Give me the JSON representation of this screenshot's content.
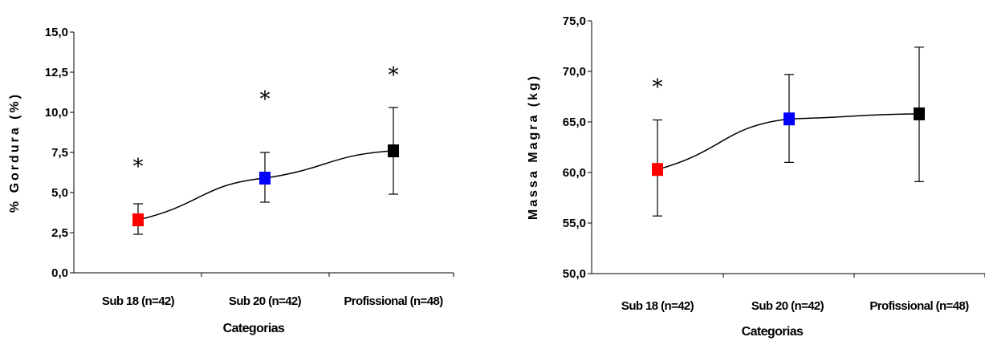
{
  "chart_data": [
    {
      "type": "line",
      "title": "",
      "xlabel": "Categorias",
      "ylabel": "% Gordura  (%)",
      "categories": [
        "Sub 18 (n=42)",
        "Sub 20 (n=42)",
        "Profissional (n=48)"
      ],
      "ylim": [
        0,
        15
      ],
      "yticks": [
        "0,0",
        "2,5",
        "5,0",
        "7,5",
        "10,0",
        "12,5",
        "15,0"
      ],
      "series": [
        {
          "values": [
            3.3,
            5.9,
            7.6
          ],
          "error_low": [
            2.4,
            4.4,
            4.9
          ],
          "error_high": [
            4.3,
            7.5,
            10.3
          ],
          "marker_colors": [
            "#ff0000",
            "#0000ff",
            "#000000"
          ]
        }
      ],
      "annotations": [
        {
          "category": "Sub 18 (n=42)",
          "text": "*",
          "y": 6.9
        },
        {
          "category": "Sub 20 (n=42)",
          "text": "*",
          "y": 11.1
        },
        {
          "category": "Profissional (n=48)",
          "text": "*",
          "y": 12.6
        }
      ],
      "grid": false
    },
    {
      "type": "line",
      "title": "",
      "xlabel": "Categorias",
      "ylabel": "Massa Magra  (kg)",
      "categories": [
        "Sub 18 (n=42)",
        "Sub 20 (n=42)",
        "Profissional (n=48)"
      ],
      "ylim": [
        50,
        75
      ],
      "yticks": [
        "50,0",
        "55,0",
        "60,0",
        "65,0",
        "70,0",
        "75,0"
      ],
      "series": [
        {
          "values": [
            60.3,
            65.3,
            65.8
          ],
          "error_low": [
            55.7,
            61.0,
            59.1
          ],
          "error_high": [
            65.2,
            69.7,
            72.4
          ],
          "marker_colors": [
            "#ff0000",
            "#0000ff",
            "#000000"
          ]
        }
      ],
      "annotations": [
        {
          "category": "Sub 18 (n=42)",
          "text": "*",
          "y": 68.9
        }
      ],
      "grid": false
    }
  ]
}
